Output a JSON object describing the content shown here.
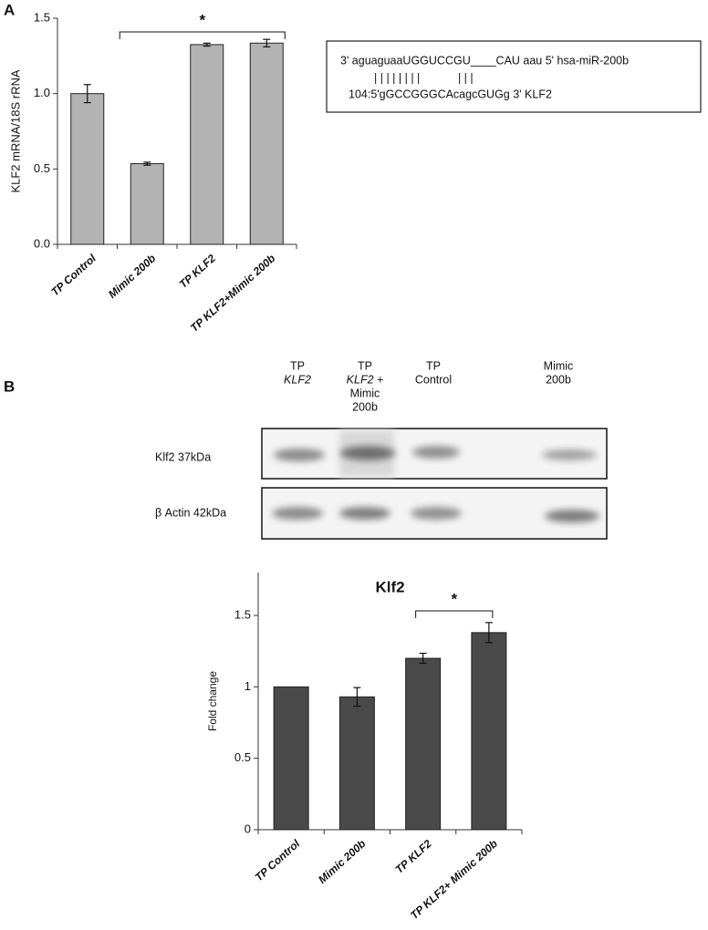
{
  "panels": [
    "A",
    "B"
  ],
  "alignment": [
    "3' aguaguaaUGGUCCGU____CAU aau 5' hsa-miR-200b",
    "| | | | | | | |            | | |",
    "104:5'gGCCGGGCAcagcGUGg  3' KLF2"
  ],
  "blot": {
    "headers": [
      [
        "TP",
        "KLF2"
      ],
      [
        "TP",
        "KLF2 +",
        "Mimic",
        "200b"
      ],
      [
        "TP",
        "Control"
      ],
      [
        "Mimic",
        "200b"
      ]
    ],
    "rows": [
      "Klf2 37kDa",
      "β Actin 42kDa"
    ]
  },
  "chart_data": [
    {
      "type": "bar",
      "ylabel": "KLF2 mRNA/18S rRNA",
      "categories": [
        "TP Control",
        "Mimic 200b",
        "TP KLF2",
        "TP KLF2+Mimic 200b"
      ],
      "values": [
        1.0,
        0.535,
        1.325,
        1.335
      ],
      "errors": [
        0.06,
        0.01,
        0.01,
        0.025
      ],
      "color": "#b3b3b3",
      "ylim": [
        0,
        1.5
      ],
      "yticks": [
        {
          "value": 0,
          "label": "0.0"
        },
        0.5,
        {
          "value": 1,
          "label": "1.0"
        },
        1.5
      ],
      "annotation": "*"
    },
    {
      "type": "bar",
      "title": "Klf2",
      "ylabel": "Fold change",
      "categories": [
        "TP Control",
        "Mimic 200b",
        "TP KLF2",
        "TP KLF2+ Mimic 200b"
      ],
      "values": [
        1.0,
        0.93,
        1.2,
        1.38
      ],
      "errors": [
        0,
        0.065,
        0.035,
        0.07
      ],
      "color": "#4a4a4a",
      "ylim": [
        0,
        1.8
      ],
      "yticks": [
        0,
        0.5,
        1,
        1.5
      ],
      "annotation": "*"
    }
  ]
}
